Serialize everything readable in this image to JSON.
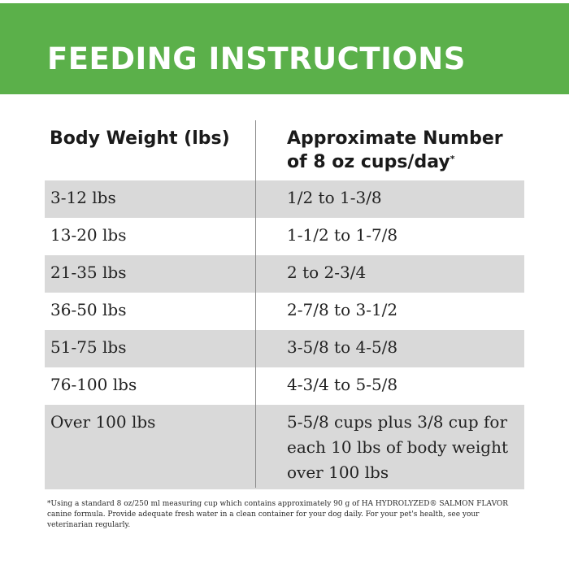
{
  "title": "FEEDING INSTRUCTIONS",
  "headers": {
    "weight": "Body Weight (lbs)",
    "cups_line1": "Approximate Number",
    "cups_line2": "of 8 oz cups/day",
    "cups_mark": "*"
  },
  "rows": [
    {
      "weight": "3-12 lbs",
      "cups": "1/2 to 1-3/8"
    },
    {
      "weight": "13-20 lbs",
      "cups": "1-1/2 to 1-7/8"
    },
    {
      "weight": "21-35 lbs",
      "cups": "2 to 2-3/4"
    },
    {
      "weight": "36-50 lbs",
      "cups": "2-7/8 to 3-1/2"
    },
    {
      "weight": "51-75 lbs",
      "cups": "3-5/8 to 4-5/8"
    },
    {
      "weight": "76-100 lbs",
      "cups": "4-3/4 to 5-5/8"
    },
    {
      "weight": "Over 100 lbs",
      "cups": "5-5/8 cups plus 3/8 cup for each 10 lbs of body weight over 100 lbs"
    }
  ],
  "footnote": "*Using a standard 8 oz/250 ml measuring cup which contains approximately 90 g of HA HYDROLYZED® SALMON FLAVOR canine formula. Provide adequate fresh water in a clean container for your dog daily. For your pet's health, see your veterinarian regularly.",
  "colors": {
    "banner": "#5bb04a",
    "row_shade": "#d9d9d9",
    "divider": "#8a8a8a"
  }
}
